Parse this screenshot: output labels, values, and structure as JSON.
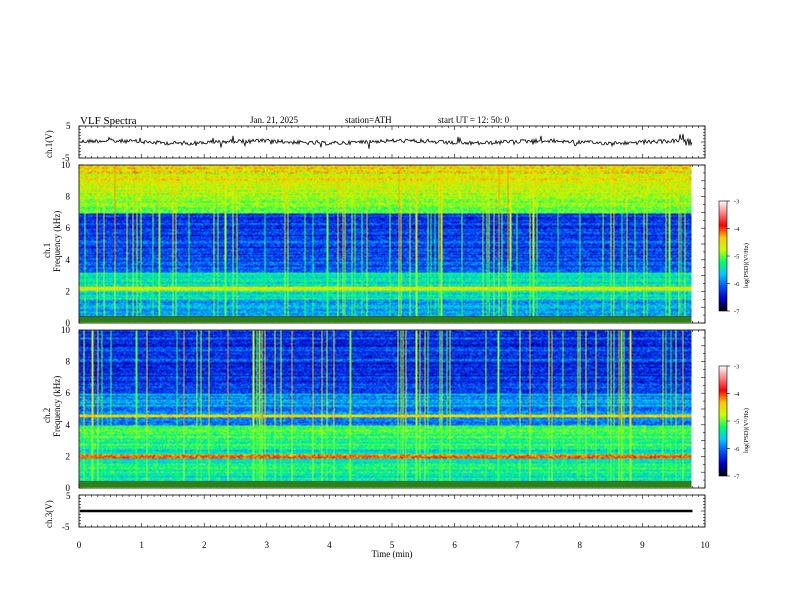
{
  "header": {
    "title": "VLF  Spectra",
    "date": "Jan. 21, 2025",
    "station": "station=ATH",
    "start": "start  UT  =    12: 50: 0"
  },
  "chart_data": [
    {
      "name": "ch1-waveform",
      "type": "line",
      "ylabel": "ch.1(V)",
      "ylim": [
        -5,
        5
      ],
      "yticks": [
        "5",
        "-5"
      ]
    },
    {
      "name": "ch1-spectrogram",
      "type": "heatmap",
      "ylabel_top": "ch.1",
      "ylabel": "Frequency  (kHz)",
      "ylim": [
        0,
        10
      ],
      "yticks": [
        "0",
        "2",
        "4",
        "6",
        "8",
        "10"
      ],
      "colorbar": {
        "label": "log(PSD)(V²/Hz)",
        "range": [
          -7,
          -3
        ],
        "ticks": [
          "-3",
          "-4",
          "-5",
          "-6",
          "-7"
        ]
      }
    },
    {
      "name": "ch2-spectrogram",
      "type": "heatmap",
      "ylabel_top": "ch.2",
      "ylabel": "Frequency  (kHz)",
      "ylim": [
        0,
        10
      ],
      "yticks": [
        "0",
        "2",
        "4",
        "6",
        "8",
        "10"
      ],
      "colorbar": {
        "label": "log(PSD)(V²/Hz)",
        "range": [
          -7,
          -3
        ],
        "ticks": [
          "-3",
          "-4",
          "-5",
          "-6",
          "-7"
        ]
      }
    },
    {
      "name": "ch3-waveform",
      "type": "line",
      "ylabel": "ch.3(V)",
      "ylim": [
        -5,
        5
      ],
      "yticks": [
        "5",
        "-5"
      ]
    }
  ],
  "xaxis": {
    "label": "Time  (min)",
    "xlim": [
      0,
      10
    ],
    "ticks": [
      "0",
      "1",
      "2",
      "3",
      "4",
      "5",
      "6",
      "7",
      "8",
      "9",
      "10"
    ]
  },
  "colors": {
    "colormap": [
      "#000000",
      "#0000c8",
      "#0050ff",
      "#00c8ff",
      "#00ff64",
      "#c8ff00",
      "#ffc800",
      "#ff0000",
      "#ff8080",
      "#ffffff"
    ]
  }
}
